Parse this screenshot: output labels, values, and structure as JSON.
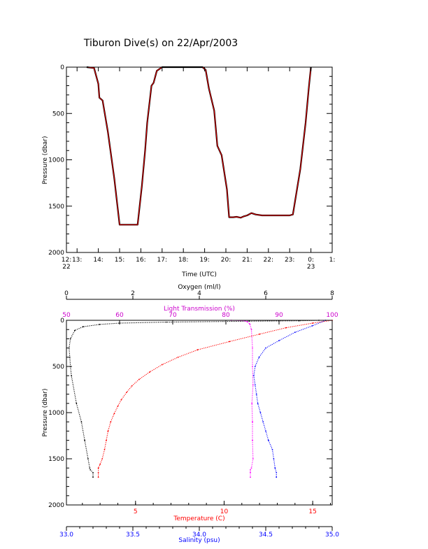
{
  "title": "Tiburon Dive(s) on 22/Apr/2003",
  "chart_data": [
    {
      "type": "line",
      "xlabel": "Time (UTC)",
      "ylabel": "Pressure (dbar)",
      "xlim": [
        12.5,
        25.0
      ],
      "ylim": [
        2000,
        0
      ],
      "xticks": [
        {
          "v": 12.5,
          "label": "12:",
          "sub": "22"
        },
        {
          "v": 13,
          "label": "13:",
          "sub": ""
        },
        {
          "v": 14,
          "label": "14:",
          "sub": ""
        },
        {
          "v": 15,
          "label": "15:",
          "sub": ""
        },
        {
          "v": 16,
          "label": "16:",
          "sub": ""
        },
        {
          "v": 17,
          "label": "17:",
          "sub": ""
        },
        {
          "v": 18,
          "label": "18:",
          "sub": ""
        },
        {
          "v": 19,
          "label": "19:",
          "sub": ""
        },
        {
          "v": 20,
          "label": "20:",
          "sub": ""
        },
        {
          "v": 21,
          "label": "21:",
          "sub": ""
        },
        {
          "v": 22,
          "label": "22:",
          "sub": ""
        },
        {
          "v": 23,
          "label": "23:",
          "sub": ""
        },
        {
          "v": 24,
          "label": "0:",
          "sub": "23"
        },
        {
          "v": 25,
          "label": "1:",
          "sub": ""
        }
      ],
      "yticks": [
        0,
        500,
        1000,
        1500,
        2000
      ],
      "series": [
        {
          "color": "#000000",
          "x": [
            13.45,
            13.8,
            14.0,
            14.05,
            14.2,
            14.45,
            14.75,
            15.0,
            15.6,
            15.85,
            16.05,
            16.2,
            16.3,
            16.5,
            16.6,
            16.75,
            17.0,
            18.9,
            19.05,
            19.2,
            19.45,
            19.6,
            19.8,
            20.05,
            20.15,
            20.35,
            20.5,
            20.7,
            20.85,
            21.0,
            21.2,
            21.4,
            21.7,
            22.5,
            23.0,
            23.15,
            23.5,
            23.75,
            23.9,
            24.0
          ],
          "y": [
            0,
            10,
            180,
            330,
            360,
            700,
            1200,
            1700,
            1700,
            1700,
            1280,
            900,
            600,
            200,
            170,
            40,
            0,
            0,
            30,
            230,
            470,
            850,
            950,
            1320,
            1620,
            1620,
            1615,
            1625,
            1610,
            1600,
            1575,
            1590,
            1600,
            1600,
            1600,
            1590,
            1100,
            600,
            220,
            0
          ]
        },
        {
          "color": "#ff0000",
          "x": [
            13.45,
            13.8,
            14.0,
            14.05,
            14.2,
            14.45,
            14.75,
            15.0,
            15.6,
            15.85,
            16.05,
            16.2,
            16.3,
            16.5,
            16.6,
            16.75,
            17.0,
            18.9,
            19.05,
            19.2,
            19.45,
            19.6,
            19.8,
            20.05,
            20.15,
            20.35,
            20.5,
            20.7,
            20.85,
            21.0,
            21.2,
            21.4,
            21.7,
            22.5,
            23.0,
            23.15,
            23.5,
            23.75,
            23.9,
            24.0
          ],
          "y": [
            0,
            10,
            180,
            330,
            360,
            700,
            1200,
            1700,
            1700,
            1700,
            1280,
            900,
            600,
            200,
            170,
            40,
            0,
            0,
            30,
            230,
            470,
            850,
            950,
            1320,
            1620,
            1620,
            1615,
            1625,
            1610,
            1600,
            1575,
            1590,
            1600,
            1600,
            1600,
            1590,
            1100,
            600,
            220,
            0
          ]
        }
      ]
    },
    {
      "type": "scatter",
      "ylabel": "Pressure (dbar)",
      "ylim": [
        2000,
        0
      ],
      "yticks": [
        0,
        500,
        1000,
        1500,
        2000
      ],
      "axes": [
        {
          "id": "oxygen",
          "label": "Oxygen (ml/l)",
          "color": "#000000",
          "position": "top-outer",
          "lim": [
            0,
            8
          ],
          "ticks": [
            0,
            2,
            4,
            6,
            8
          ],
          "ticklabels": [
            "0",
            "2",
            "4",
            "6",
            "8"
          ]
        },
        {
          "id": "light",
          "label": "Light Transmission (%)",
          "color": "#cc00cc",
          "position": "top-inner",
          "lim": [
            50,
            100
          ],
          "ticks": [
            50,
            60,
            70,
            80,
            90,
            100
          ],
          "ticklabels": [
            "50",
            "60",
            "70",
            "80",
            "90",
            "100"
          ]
        },
        {
          "id": "temperature",
          "label": "Temperature (C)",
          "color": "#ff0000",
          "position": "bottom-inner",
          "lim": [
            1.1,
            16.1
          ],
          "ticks": [
            5,
            10,
            15
          ],
          "ticklabels": [
            "5",
            "10",
            "15"
          ]
        },
        {
          "id": "salinity",
          "label": "Salinity (psu)",
          "color": "#0000ff",
          "position": "bottom-outer",
          "lim": [
            33.0,
            35.0
          ],
          "ticks": [
            33.0,
            33.5,
            34.0,
            34.5,
            35.0
          ],
          "ticklabels": [
            "33.0",
            "33.5",
            "34.0",
            "34.5",
            "35.0"
          ]
        }
      ],
      "series": [
        {
          "axis": "oxygen",
          "color": "#000000",
          "value": [
            7.6,
            7.0,
            5.5,
            3.0,
            1.6,
            1.0,
            0.5,
            0.25,
            0.12,
            0.08,
            0.1,
            0.12,
            0.15,
            0.3,
            0.45,
            0.55,
            0.65,
            0.7,
            0.72,
            0.8,
            0.8
          ],
          "pressure": [
            0,
            5,
            10,
            20,
            30,
            45,
            70,
            110,
            200,
            300,
            400,
            500,
            600,
            900,
            1100,
            1300,
            1500,
            1600,
            1620,
            1650,
            1700
          ]
        },
        {
          "axis": "light",
          "color": "#ff00ff",
          "value": [
            81.0,
            83.5,
            84.0,
            84.5,
            84.8,
            85.0,
            85.0,
            85.1,
            84.9,
            85.0,
            85.0,
            85.1,
            84.8,
            84.6,
            84.6,
            84.6
          ],
          "pressure": [
            0,
            5,
            15,
            40,
            100,
            300,
            500,
            700,
            900,
            1100,
            1300,
            1500,
            1600,
            1620,
            1650,
            1700
          ]
        },
        {
          "axis": "temperature",
          "color": "#ff0000",
          "value": [
            16.1,
            15.0,
            13.5,
            12.0,
            10.3,
            8.5,
            7.4,
            6.5,
            5.8,
            5.2,
            4.8,
            4.5,
            4.2,
            4.0,
            3.8,
            3.6,
            3.45,
            3.35,
            3.25,
            3.12,
            3.0,
            2.9,
            2.9,
            2.9
          ],
          "pressure": [
            0,
            30,
            80,
            150,
            230,
            320,
            400,
            480,
            560,
            640,
            710,
            780,
            860,
            930,
            1010,
            1100,
            1200,
            1300,
            1400,
            1500,
            1560,
            1600,
            1650,
            1700
          ]
        },
        {
          "axis": "salinity",
          "color": "#0000ff",
          "value": [
            34.95,
            34.85,
            34.72,
            34.6,
            34.5,
            34.45,
            34.42,
            34.41,
            34.42,
            34.43,
            34.44,
            34.46,
            34.48,
            34.5,
            34.52,
            34.55,
            34.56,
            34.57,
            34.58,
            34.58
          ],
          "pressure": [
            0,
            60,
            130,
            220,
            300,
            400,
            500,
            600,
            700,
            800,
            900,
            1000,
            1100,
            1200,
            1300,
            1400,
            1500,
            1600,
            1650,
            1700
          ]
        }
      ]
    }
  ]
}
